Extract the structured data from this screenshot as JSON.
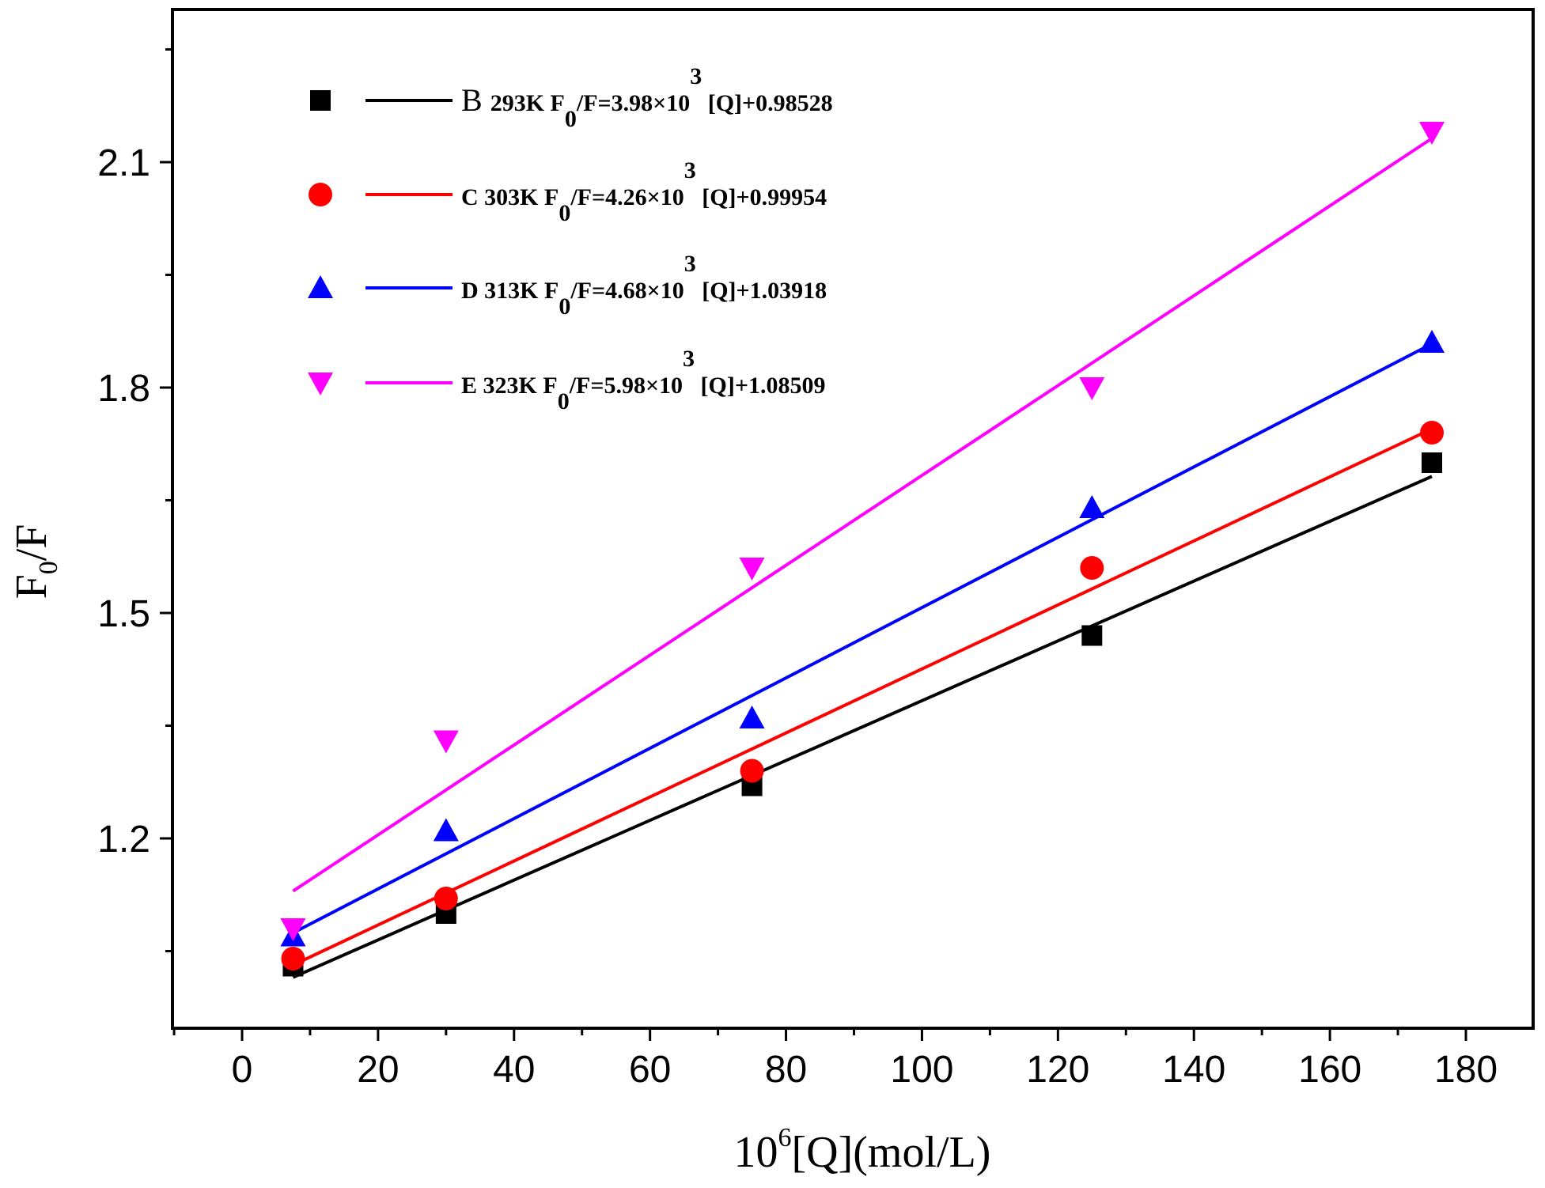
{
  "chart_data": {
    "type": "scatter",
    "xlabel": {
      "base": "10",
      "sup": "6",
      "rest": "[Q](mol/L)"
    },
    "ylabel": {
      "base": "F",
      "sub": "0",
      "rest": "/F"
    },
    "xlim": [
      -10,
      190
    ],
    "ylim": [
      0.95,
      2.3
    ],
    "xticks": [
      0,
      20,
      40,
      60,
      80,
      100,
      120,
      140,
      160,
      180
    ],
    "yticks": [
      1.2,
      1.5,
      1.8,
      2.1
    ],
    "xtick_labels": [
      "0",
      "20",
      "40",
      "60",
      "80",
      "100",
      "120",
      "140",
      "160",
      "180"
    ],
    "ytick_labels": [
      "1.2",
      "1.5",
      "1.8",
      "2.1"
    ],
    "legend_position": "top-left",
    "series": [
      {
        "name": "B",
        "temperature": "293K",
        "equation": {
          "lhs": "F",
          "lhs_sub": "0",
          "mid": "/F=3.98×10",
          "sup": "3",
          "rhs": "[Q]+0.98528"
        },
        "color": "#000000",
        "marker": "square",
        "x": [
          7.5,
          30,
          75,
          125,
          175
        ],
        "y": [
          1.03,
          1.1,
          1.27,
          1.47,
          1.7
        ],
        "fit": {
          "slope": 0.00398,
          "intercept": 0.98528,
          "x_range": [
            7.5,
            175
          ]
        }
      },
      {
        "name": "C",
        "temperature": "303K",
        "equation": {
          "lhs": "F",
          "lhs_sub": "0",
          "mid": "/F=4.26×10",
          "sup": "3",
          "rhs": "[Q]+0.99954"
        },
        "color": "#ff0000",
        "marker": "circle",
        "x": [
          7.5,
          30,
          75,
          125,
          175
        ],
        "y": [
          1.04,
          1.12,
          1.29,
          1.56,
          1.74
        ],
        "fit": {
          "slope": 0.00426,
          "intercept": 0.99954,
          "x_range": [
            7.5,
            175
          ]
        }
      },
      {
        "name": "D",
        "temperature": "313K",
        "equation": {
          "lhs": "F",
          "lhs_sub": "0",
          "mid": "/F=4.68×10",
          "sup": "3",
          "rhs": "[Q]+1.03918"
        },
        "color": "#0000ff",
        "marker": "triangle-up",
        "x": [
          7.5,
          30,
          75,
          125,
          175
        ],
        "y": [
          1.07,
          1.21,
          1.36,
          1.64,
          1.86
        ],
        "fit": {
          "slope": 0.00468,
          "intercept": 1.03918,
          "x_range": [
            7.5,
            175
          ]
        }
      },
      {
        "name": "E",
        "temperature": "323K",
        "equation": {
          "lhs": "F",
          "lhs_sub": "0",
          "mid": "/F=5.98×10",
          "sup": "3",
          "rhs": "[Q]+1.08509"
        },
        "color": "#ff00ff",
        "marker": "triangle-down",
        "x": [
          7.5,
          30,
          75,
          125,
          175
        ],
        "y": [
          1.08,
          1.33,
          1.56,
          1.8,
          2.14
        ],
        "fit": {
          "slope": 0.00598,
          "intercept": 1.08509,
          "x_range": [
            7.5,
            175
          ]
        }
      }
    ]
  }
}
